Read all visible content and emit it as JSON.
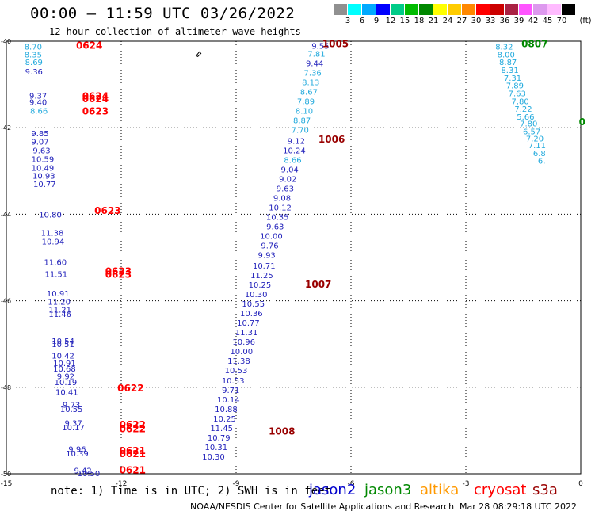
{
  "header": {
    "title": "00:00 — 11:59 UTC 03/26/2022",
    "subtitle": "12 hour collection of altimeter wave heights"
  },
  "colorbar": {
    "unit": "(ft)",
    "colors": [
      "#909090",
      "#00ffff",
      "#00aaff",
      "#0000ff",
      "#00cc88",
      "#00bb00",
      "#008800",
      "#ffff00",
      "#ffcc00",
      "#ff8800",
      "#ff0000",
      "#cc0000",
      "#aa2244",
      "#ff55ff",
      "#dd99ee",
      "#ffbbff",
      "#000000"
    ],
    "labels": [
      "3",
      "6",
      "9",
      "12",
      "15",
      "18",
      "21",
      "24",
      "27",
      "30",
      "33",
      "36",
      "39",
      "42",
      "45",
      "70"
    ]
  },
  "chart_data": {
    "type": "scatter",
    "xlabel": "",
    "ylabel": "",
    "xlim": [
      -15,
      0
    ],
    "ylim": [
      -50,
      -40
    ],
    "xticks": [
      "-15",
      "-12",
      "-9",
      "-6",
      "-3",
      "0"
    ],
    "yticks": [
      "-40",
      "-42",
      "-44",
      "-46",
      "-48",
      "-50"
    ],
    "points": [
      {
        "lon": -6.8,
        "lat": -40.1,
        "v": "9.55",
        "c": "#2222bb"
      },
      {
        "lon": -6.9,
        "lat": -40.28,
        "v": "7.81",
        "c": "#22aadd"
      },
      {
        "lon": -6.95,
        "lat": -40.5,
        "v": "9.44",
        "c": "#2222bb"
      },
      {
        "lon": -7.0,
        "lat": -40.72,
        "v": "7.36",
        "c": "#22aadd"
      },
      {
        "lon": -7.05,
        "lat": -40.94,
        "v": "8.13",
        "c": "#22aadd"
      },
      {
        "lon": -7.1,
        "lat": -41.16,
        "v": "8.67",
        "c": "#22aadd"
      },
      {
        "lon": -7.18,
        "lat": -41.38,
        "v": "7.89",
        "c": "#22aadd"
      },
      {
        "lon": -7.22,
        "lat": -41.6,
        "v": "8.10",
        "c": "#22aadd"
      },
      {
        "lon": -7.28,
        "lat": -41.82,
        "v": "8.87",
        "c": "#22aadd"
      },
      {
        "lon": -7.33,
        "lat": -42.04,
        "v": "7.70",
        "c": "#22aadd"
      },
      {
        "lon": -7.43,
        "lat": -42.3,
        "v": "9.12",
        "c": "#2222bb"
      },
      {
        "lon": -7.48,
        "lat": -42.52,
        "v": "10.24",
        "c": "#2222bb"
      },
      {
        "lon": -7.52,
        "lat": -42.74,
        "v": "8.66",
        "c": "#22aadd"
      },
      {
        "lon": -7.6,
        "lat": -42.96,
        "v": "9.04",
        "c": "#2222bb"
      },
      {
        "lon": -7.65,
        "lat": -43.18,
        "v": "9.02",
        "c": "#2222bb"
      },
      {
        "lon": -7.72,
        "lat": -43.4,
        "v": "9.63",
        "c": "#2222bb"
      },
      {
        "lon": -7.8,
        "lat": -43.62,
        "v": "9.08",
        "c": "#2222bb"
      },
      {
        "lon": -7.85,
        "lat": -43.84,
        "v": "10.12",
        "c": "#2222bb"
      },
      {
        "lon": -7.92,
        "lat": -44.06,
        "v": "10.35",
        "c": "#2222bb"
      },
      {
        "lon": -7.98,
        "lat": -44.28,
        "v": "9.63",
        "c": "#2222bb"
      },
      {
        "lon": -8.08,
        "lat": -44.5,
        "v": "10.00",
        "c": "#2222bb"
      },
      {
        "lon": -8.12,
        "lat": -44.72,
        "v": "9.76",
        "c": "#2222bb"
      },
      {
        "lon": -8.2,
        "lat": -44.94,
        "v": "9.93",
        "c": "#2222bb"
      },
      {
        "lon": -8.27,
        "lat": -45.18,
        "v": "10.71",
        "c": "#2222bb"
      },
      {
        "lon": -8.33,
        "lat": -45.4,
        "v": "11.25",
        "c": "#2222bb"
      },
      {
        "lon": -8.38,
        "lat": -45.62,
        "v": "10.25",
        "c": "#2222bb"
      },
      {
        "lon": -8.48,
        "lat": -45.84,
        "v": "10.30",
        "c": "#2222bb"
      },
      {
        "lon": -8.55,
        "lat": -46.06,
        "v": "10.55",
        "c": "#2222bb"
      },
      {
        "lon": -8.6,
        "lat": -46.28,
        "v": "10.36",
        "c": "#2222bb"
      },
      {
        "lon": -8.68,
        "lat": -46.5,
        "v": "10.77",
        "c": "#2222bb"
      },
      {
        "lon": -8.73,
        "lat": -46.72,
        "v": "11.31",
        "c": "#2222bb"
      },
      {
        "lon": -8.8,
        "lat": -46.94,
        "v": "10.96",
        "c": "#2222bb"
      },
      {
        "lon": -8.86,
        "lat": -47.16,
        "v": "10.00",
        "c": "#2222bb"
      },
      {
        "lon": -8.93,
        "lat": -47.38,
        "v": "11.38",
        "c": "#2222bb"
      },
      {
        "lon": -9.0,
        "lat": -47.6,
        "v": "10.53",
        "c": "#2222bb"
      },
      {
        "lon": -9.08,
        "lat": -47.84,
        "v": "10.53",
        "c": "#2222bb"
      },
      {
        "lon": -9.14,
        "lat": -48.06,
        "v": "9.71",
        "c": "#2222bb"
      },
      {
        "lon": -9.2,
        "lat": -48.28,
        "v": "10.14",
        "c": "#2222bb"
      },
      {
        "lon": -9.26,
        "lat": -48.5,
        "v": "10.88",
        "c": "#2222bb"
      },
      {
        "lon": -9.3,
        "lat": -48.72,
        "v": "10.25",
        "c": "#2222bb"
      },
      {
        "lon": -9.38,
        "lat": -48.94,
        "v": "11.45",
        "c": "#2222bb"
      },
      {
        "lon": -9.45,
        "lat": -49.16,
        "v": "10.79",
        "c": "#2222bb"
      },
      {
        "lon": -9.52,
        "lat": -49.38,
        "v": "10.31",
        "c": "#2222bb"
      },
      {
        "lon": -9.59,
        "lat": -49.6,
        "v": "10.30",
        "c": "#2222bb"
      },
      {
        "lon": -14.3,
        "lat": -40.12,
        "v": "8.70",
        "c": "#22aadd"
      },
      {
        "lon": -14.3,
        "lat": -40.3,
        "v": "8.35",
        "c": "#22aadd"
      },
      {
        "lon": -14.28,
        "lat": -40.48,
        "v": "8.69",
        "c": "#22aadd"
      },
      {
        "lon": -14.28,
        "lat": -40.7,
        "v": "9.36",
        "c": "#2222bb"
      },
      {
        "lon": -14.17,
        "lat": -41.25,
        "v": "9.37",
        "c": "#2222bb"
      },
      {
        "lon": -14.17,
        "lat": -41.4,
        "v": "9.40",
        "c": "#2222bb"
      },
      {
        "lon": -14.15,
        "lat": -41.6,
        "v": "8.66",
        "c": "#22aadd"
      },
      {
        "lon": -14.12,
        "lat": -42.12,
        "v": "9.85",
        "c": "#2222bb"
      },
      {
        "lon": -14.12,
        "lat": -42.32,
        "v": "9.07",
        "c": "#2222bb"
      },
      {
        "lon": -14.08,
        "lat": -42.52,
        "v": "9.63",
        "c": "#2222bb"
      },
      {
        "lon": -14.05,
        "lat": -42.72,
        "v": "10.59",
        "c": "#2222bb"
      },
      {
        "lon": -14.05,
        "lat": -42.92,
        "v": "10.49",
        "c": "#2222bb"
      },
      {
        "lon": -14.02,
        "lat": -43.1,
        "v": "10.93",
        "c": "#2222bb"
      },
      {
        "lon": -14.0,
        "lat": -43.3,
        "v": "10.77",
        "c": "#2222bb"
      },
      {
        "lon": -13.85,
        "lat": -44.0,
        "v": "10.80",
        "c": "#2222bb"
      },
      {
        "lon": -13.8,
        "lat": -44.42,
        "v": "11.38",
        "c": "#2222bb"
      },
      {
        "lon": -13.78,
        "lat": -44.62,
        "v": "10.94",
        "c": "#2222bb"
      },
      {
        "lon": -13.72,
        "lat": -45.1,
        "v": "11.60",
        "c": "#2222bb"
      },
      {
        "lon": -13.7,
        "lat": -45.38,
        "v": "11.51",
        "c": "#2222bb"
      },
      {
        "lon": -13.65,
        "lat": -45.82,
        "v": "10.91",
        "c": "#2222bb"
      },
      {
        "lon": -13.62,
        "lat": -46.02,
        "v": "11.20",
        "c": "#2222bb"
      },
      {
        "lon": -13.6,
        "lat": -46.2,
        "v": "11.21",
        "c": "#2222bb"
      },
      {
        "lon": -13.6,
        "lat": -46.3,
        "v": "11.46",
        "c": "#2222bb"
      },
      {
        "lon": -13.52,
        "lat": -46.92,
        "v": "10.54",
        "c": "#2222bb"
      },
      {
        "lon": -13.52,
        "lat": -47.0,
        "v": "10.51",
        "c": "#2222bb"
      },
      {
        "lon": -13.52,
        "lat": -47.26,
        "v": "10.42",
        "c": "#2222bb"
      },
      {
        "lon": -13.48,
        "lat": -47.44,
        "v": "10.91",
        "c": "#2222bb"
      },
      {
        "lon": -13.48,
        "lat": -47.56,
        "v": "10.68",
        "c": "#2222bb"
      },
      {
        "lon": -13.45,
        "lat": -47.74,
        "v": "9.92",
        "c": "#2222bb"
      },
      {
        "lon": -13.45,
        "lat": -47.88,
        "v": "10.19",
        "c": "#2222bb"
      },
      {
        "lon": -13.42,
        "lat": -48.1,
        "v": "10.41",
        "c": "#2222bb"
      },
      {
        "lon": -13.3,
        "lat": -48.4,
        "v": "9.73",
        "c": "#2222bb"
      },
      {
        "lon": -13.3,
        "lat": -48.5,
        "v": "10.55",
        "c": "#2222bb"
      },
      {
        "lon": -13.25,
        "lat": -48.82,
        "v": "9.37",
        "c": "#2222bb"
      },
      {
        "lon": -13.25,
        "lat": -48.92,
        "v": "10.17",
        "c": "#2222bb"
      },
      {
        "lon": -13.15,
        "lat": -49.42,
        "v": "9.96",
        "c": "#2222bb"
      },
      {
        "lon": -13.15,
        "lat": -49.52,
        "v": "10.39",
        "c": "#2222bb"
      },
      {
        "lon": -13.0,
        "lat": -49.92,
        "v": "9.42",
        "c": "#2222bb"
      },
      {
        "lon": -12.85,
        "lat": -49.98,
        "v": "10.50",
        "c": "#2222bb"
      },
      {
        "lon": -2.0,
        "lat": -40.12,
        "v": "8.32",
        "c": "#22aadd"
      },
      {
        "lon": -1.95,
        "lat": -40.3,
        "v": "8.00",
        "c": "#22aadd"
      },
      {
        "lon": -1.9,
        "lat": -40.48,
        "v": "8.87",
        "c": "#22aadd"
      },
      {
        "lon": -1.85,
        "lat": -40.66,
        "v": "8.31",
        "c": "#22aadd"
      },
      {
        "lon": -1.78,
        "lat": -40.84,
        "v": "7.31",
        "c": "#22aadd"
      },
      {
        "lon": -1.72,
        "lat": -41.02,
        "v": "7.89",
        "c": "#22aadd"
      },
      {
        "lon": -1.66,
        "lat": -41.2,
        "v": "7.63",
        "c": "#22aadd"
      },
      {
        "lon": -1.58,
        "lat": -41.38,
        "v": "7.80",
        "c": "#22aadd"
      },
      {
        "lon": -1.5,
        "lat": -41.56,
        "v": "7.22",
        "c": "#22aadd"
      },
      {
        "lon": -1.44,
        "lat": -41.74,
        "v": "5.66",
        "c": "#22aadd"
      },
      {
        "lon": -1.36,
        "lat": -41.9,
        "v": "7.80",
        "c": "#22aadd"
      },
      {
        "lon": -1.28,
        "lat": -42.08,
        "v": "6.57",
        "c": "#22aadd"
      },
      {
        "lon": -1.2,
        "lat": -42.24,
        "v": "7.20",
        "c": "#22aadd"
      },
      {
        "lon": -1.14,
        "lat": -42.4,
        "v": "7.11",
        "c": "#22aadd"
      },
      {
        "lon": -1.08,
        "lat": -42.58,
        "v": "6.8",
        "c": "#22aadd"
      },
      {
        "lon": -1.02,
        "lat": -42.76,
        "v": "6.",
        "c": "#22aadd"
      }
    ],
    "passes": [
      {
        "lon": -13.18,
        "lat": -40.08,
        "label": "0624",
        "c": "#ff0000"
      },
      {
        "lon": -13.02,
        "lat": -41.25,
        "label": "0624",
        "c": "#ff0000"
      },
      {
        "lon": -13.02,
        "lat": -41.32,
        "label": "0624",
        "c": "#ff0000"
      },
      {
        "lon": -13.02,
        "lat": -41.6,
        "label": "0623",
        "c": "#ff0000"
      },
      {
        "lon": -12.7,
        "lat": -43.9,
        "label": "0623",
        "c": "#ff0000"
      },
      {
        "lon": -12.42,
        "lat": -45.3,
        "label": "0623",
        "c": "#ff0000"
      },
      {
        "lon": -12.42,
        "lat": -45.38,
        "label": "0623",
        "c": "#ff0000"
      },
      {
        "lon": -12.1,
        "lat": -48.0,
        "label": "0622",
        "c": "#ff0000"
      },
      {
        "lon": -12.05,
        "lat": -48.85,
        "label": "0622",
        "c": "#ff0000"
      },
      {
        "lon": -12.05,
        "lat": -48.95,
        "label": "0622",
        "c": "#ff0000"
      },
      {
        "lon": -12.05,
        "lat": -49.45,
        "label": "0621",
        "c": "#ff0000"
      },
      {
        "lon": -12.05,
        "lat": -49.52,
        "label": "0621",
        "c": "#ff0000"
      },
      {
        "lon": -12.05,
        "lat": -49.9,
        "label": "0621",
        "c": "#ff0000"
      },
      {
        "lon": -6.75,
        "lat": -40.05,
        "label": "1005",
        "c": "#990000"
      },
      {
        "lon": -6.85,
        "lat": -42.25,
        "label": "1006",
        "c": "#990000"
      },
      {
        "lon": -7.2,
        "lat": -45.6,
        "label": "1007",
        "c": "#990000"
      },
      {
        "lon": -8.15,
        "lat": -49.0,
        "label": "1008",
        "c": "#990000"
      },
      {
        "lon": -1.55,
        "lat": -40.05,
        "label": "0807",
        "c": "#008800"
      },
      {
        "lon": -0.05,
        "lat": -41.85,
        "label": "0",
        "c": "#008800"
      }
    ],
    "island": {
      "lon": -9.98,
      "lat": -40.3
    }
  },
  "note": {
    "text": "note: 1) Time is in UTC; 2) SWH is in feet"
  },
  "legend": [
    {
      "label": "jason2",
      "color": "#0000cc"
    },
    {
      "label": "jason3",
      "color": "#008800"
    },
    {
      "label": "altika",
      "color": "#ff9900"
    },
    {
      "label": "cryosat",
      "color": "#ff0000"
    },
    {
      "label": "s3a",
      "color": "#990000"
    }
  ],
  "footer": {
    "credit": "NOAA/NESDIS Center for Satellite Applications and Research",
    "timestamp": "Mar 28 08:29:18 UTC 2022"
  }
}
